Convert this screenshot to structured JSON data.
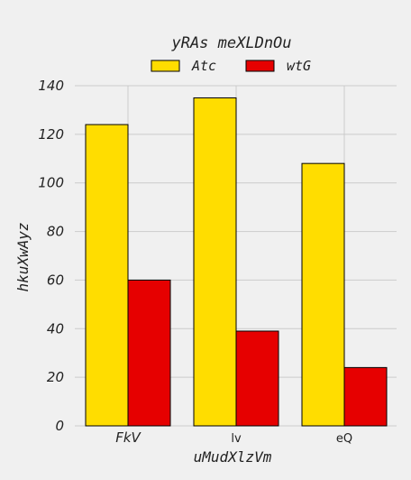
{
  "chart_data": {
    "type": "bar",
    "title": "yRAs meXLDnOu",
    "xlabel": "uMudXlzVm",
    "ylabel": "hkuXwAyz",
    "categories": [
      "FkV",
      "lv",
      "eQ"
    ],
    "series": [
      {
        "name": "Atc",
        "values": [
          124,
          135,
          108
        ],
        "color": "#ffdd00"
      },
      {
        "name": "wtG",
        "values": [
          60,
          39,
          24
        ],
        "color": "#e60000"
      }
    ],
    "ylim": [
      0,
      140
    ],
    "yticks": [
      "0",
      "20",
      "40",
      "60",
      "80",
      "100",
      "120",
      "140"
    ],
    "grid": true,
    "legend": "top-center"
  }
}
